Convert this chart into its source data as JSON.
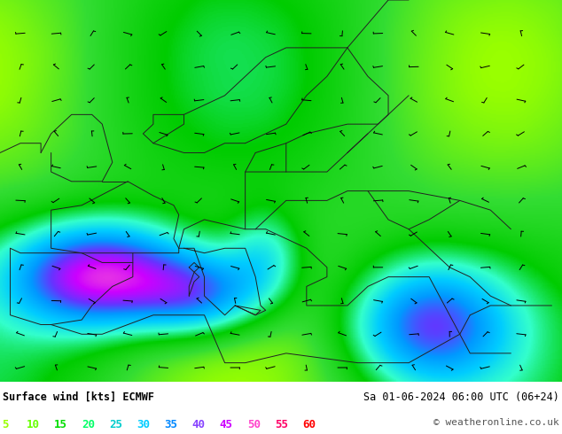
{
  "title_left": "Surface wind [kts] ECMWF",
  "title_right": "Sa 01-06-2024 06:00 UTC (06+24)",
  "copyright": "© weatheronline.co.uk",
  "legend_values": [
    5,
    10,
    15,
    20,
    25,
    30,
    35,
    40,
    45,
    50,
    55,
    60
  ],
  "legend_colors": [
    "#99ff00",
    "#66ff00",
    "#00dd00",
    "#00ff66",
    "#00cccc",
    "#00ccff",
    "#0088ff",
    "#8844ff",
    "#cc00ff",
    "#ff44cc",
    "#ff0066",
    "#ff0000"
  ],
  "bg_color": "#ffffff",
  "map_bg": "#ffff99",
  "wind_color_stops": [
    0,
    5,
    10,
    15,
    20,
    25,
    30,
    35,
    40,
    45,
    50,
    55,
    60
  ],
  "wind_colors": [
    "#ffff99",
    "#ccff33",
    "#99ff00",
    "#33dd33",
    "#00cc00",
    "#33ffcc",
    "#00ccff",
    "#0099ff",
    "#6633ff",
    "#cc00ff",
    "#ff66cc",
    "#ff0066",
    "#ff0000"
  ],
  "figsize": [
    6.34,
    4.9
  ],
  "dpi": 100
}
